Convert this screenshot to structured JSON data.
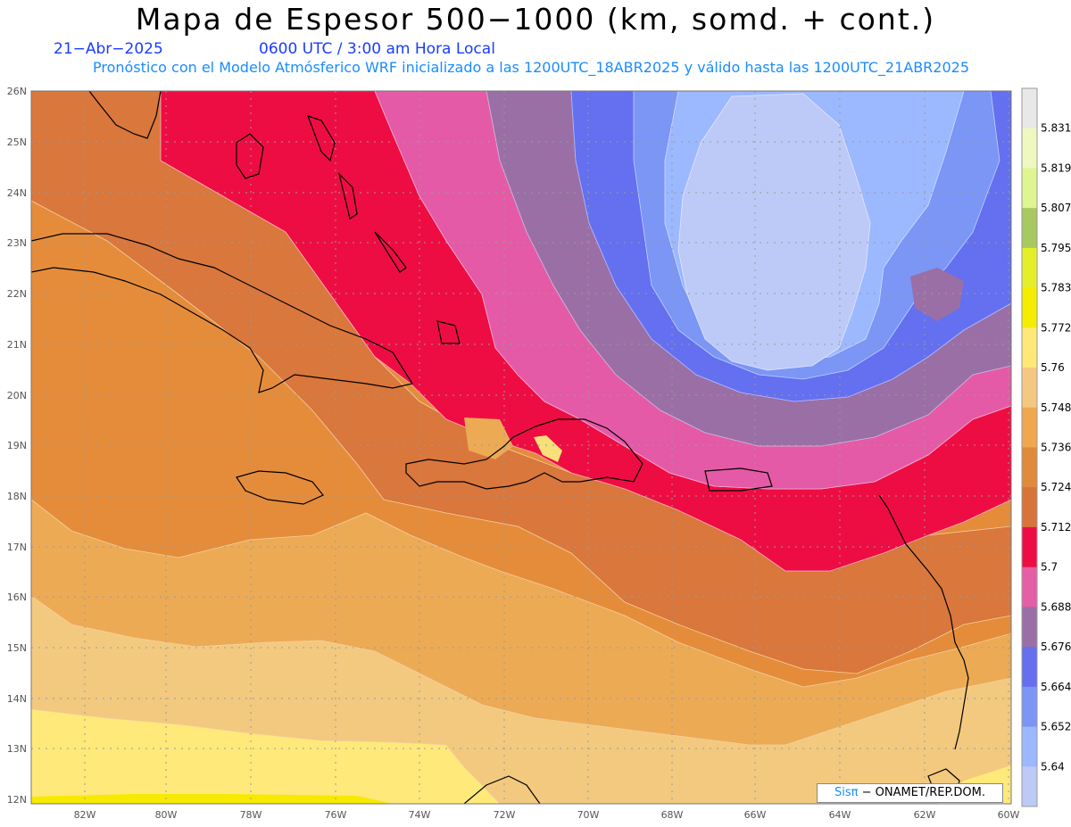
{
  "title": "Mapa de Espesor 500−1000 (km, somd. + cont.)",
  "date": "21−Abr−2025",
  "time": "0600 UTC / 3:00 am Hora Local",
  "subtitle": "Pronóstico con el Modelo Atmósferico WRF inicializado a las 1200UTC_18ABR2025 y válido hasta las  1200UTC_21ABR2025",
  "credit": {
    "brand": "Sisπ",
    "text": " − ONAMET/REP.DOM."
  },
  "lat_labels": [
    "26N",
    "25N",
    "24N",
    "23N",
    "22N",
    "21N",
    "20N",
    "19N",
    "18N",
    "17N",
    "16N",
    "15N",
    "14N",
    "13N",
    "12N"
  ],
  "lon_labels": [
    "82W",
    "80W",
    "78W",
    "76W",
    "74W",
    "72W",
    "70W",
    "68W",
    "66W",
    "64W",
    "62W",
    "60W"
  ],
  "colorbar": {
    "labels": [
      "5.831",
      "5.819",
      "5.807",
      "5.795",
      "5.783",
      "5.772",
      "5.76",
      "5.748",
      "5.736",
      "5.724",
      "5.712",
      "5.7",
      "5.688",
      "5.676",
      "5.664",
      "5.652",
      "5.64"
    ],
    "colors": [
      "#e8e8e8",
      "#eef8c0",
      "#dff590",
      "#a8c860",
      "#e4ef2a",
      "#f5ec00",
      "#ffe778",
      "#f5c882",
      "#f0a850",
      "#e08a3c",
      "#d8733a",
      "#ee0d43",
      "#e65ea6",
      "#9a6fa6",
      "#6470f0",
      "#7b96f5",
      "#9cb8ff",
      "#bdcaf7"
    ]
  },
  "colors": {
    "orange_dark": "#d9773c",
    "orange": "#e58c3b",
    "orange_light": "#ecaa55",
    "tan": "#f2c97f",
    "yellow_pale": "#ffe97a",
    "yellow": "#f7ea00",
    "red": "#ee0d43",
    "pink": "#e55aa6",
    "purple": "#9a6fa6",
    "blue": "#6470f0",
    "blue_mid": "#7b96f5",
    "blue_light": "#9cb8ff",
    "lavender": "#bdcaf7"
  }
}
